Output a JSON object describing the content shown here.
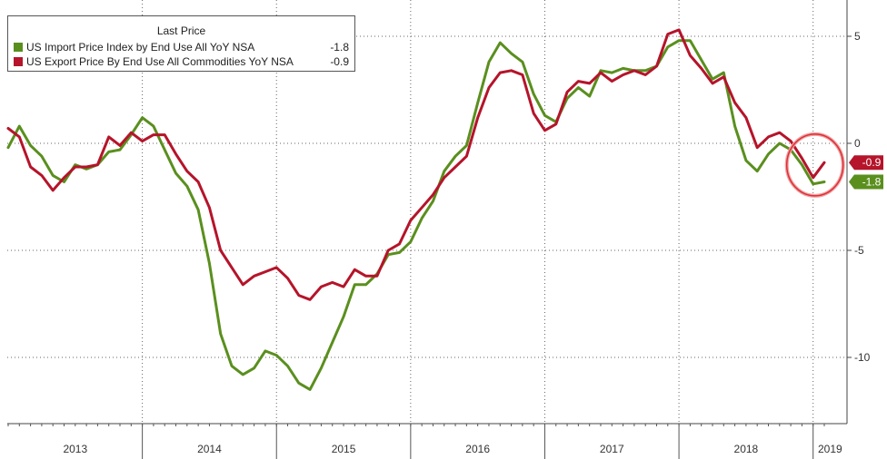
{
  "chart_data": {
    "type": "line",
    "legend": {
      "title": "Last Price",
      "placement": "top-left"
    },
    "series": [
      {
        "name": "US Import Price Index by End Use All YoY NSA",
        "last_value_label": "-1.8",
        "color": "#5a8f1e",
        "values": [
          -0.2,
          0.8,
          -0.1,
          -0.6,
          -1.5,
          -1.8,
          -1.0,
          -1.2,
          -1.0,
          -0.4,
          -0.3,
          0.4,
          1.2,
          0.8,
          -0.3,
          -1.4,
          -2.0,
          -3.1,
          -5.6,
          -8.9,
          -10.4,
          -10.8,
          -10.5,
          -9.7,
          -9.9,
          -10.4,
          -11.2,
          -11.5,
          -10.5,
          -9.3,
          -8.1,
          -6.6,
          -6.6,
          -6.1,
          -5.2,
          -5.1,
          -4.6,
          -3.5,
          -2.7,
          -1.3,
          -0.6,
          -0.1,
          1.9,
          3.8,
          4.7,
          4.2,
          3.8,
          2.3,
          1.3,
          1.0,
          2.1,
          2.6,
          2.2,
          3.4,
          3.3,
          3.5,
          3.4,
          3.4,
          3.6,
          4.5,
          4.8,
          4.8,
          3.9,
          3.0,
          3.3,
          0.8,
          -0.8,
          -1.3,
          -0.5,
          0.0,
          -0.3,
          -1.0,
          -1.9,
          -1.8
        ]
      },
      {
        "name": "US Export Price By End Use All Commodities YoY NSA",
        "last_value_label": "-0.9",
        "color": "#b5142a",
        "values": [
          0.7,
          0.3,
          -1.1,
          -1.5,
          -2.2,
          -1.6,
          -1.1,
          -1.1,
          -1.0,
          0.3,
          -0.1,
          0.5,
          0.1,
          0.4,
          0.4,
          -0.5,
          -1.3,
          -1.8,
          -3.0,
          -5.0,
          -5.8,
          -6.6,
          -6.2,
          -6.0,
          -5.8,
          -6.3,
          -7.1,
          -7.3,
          -6.7,
          -6.5,
          -6.7,
          -5.9,
          -6.2,
          -6.2,
          -5.0,
          -4.7,
          -3.6,
          -3.0,
          -2.4,
          -1.6,
          -1.1,
          -0.6,
          1.2,
          2.6,
          3.3,
          3.4,
          3.2,
          1.4,
          0.6,
          0.9,
          2.4,
          2.9,
          2.8,
          3.3,
          2.9,
          3.2,
          3.4,
          3.2,
          3.6,
          5.1,
          5.3,
          4.1,
          3.5,
          2.8,
          3.1,
          1.9,
          1.2,
          -0.2,
          0.3,
          0.5,
          0.1,
          -0.7,
          -1.6,
          -0.9
        ]
      }
    ],
    "x_start": "2013-01",
    "x_end": "2019-02",
    "x_step": "1 month",
    "year_labels": [
      "2013",
      "2014",
      "2015",
      "2016",
      "2017",
      "2018",
      "2019"
    ],
    "y_axis": {
      "position": "right",
      "ticks": [
        5,
        0,
        -5,
        -10
      ],
      "tick_labels": [
        "5",
        "0",
        "-5",
        "-10"
      ],
      "ylim": [
        -13,
        6.5
      ]
    },
    "grid": "dotted",
    "annotation": "circle around latest values"
  }
}
